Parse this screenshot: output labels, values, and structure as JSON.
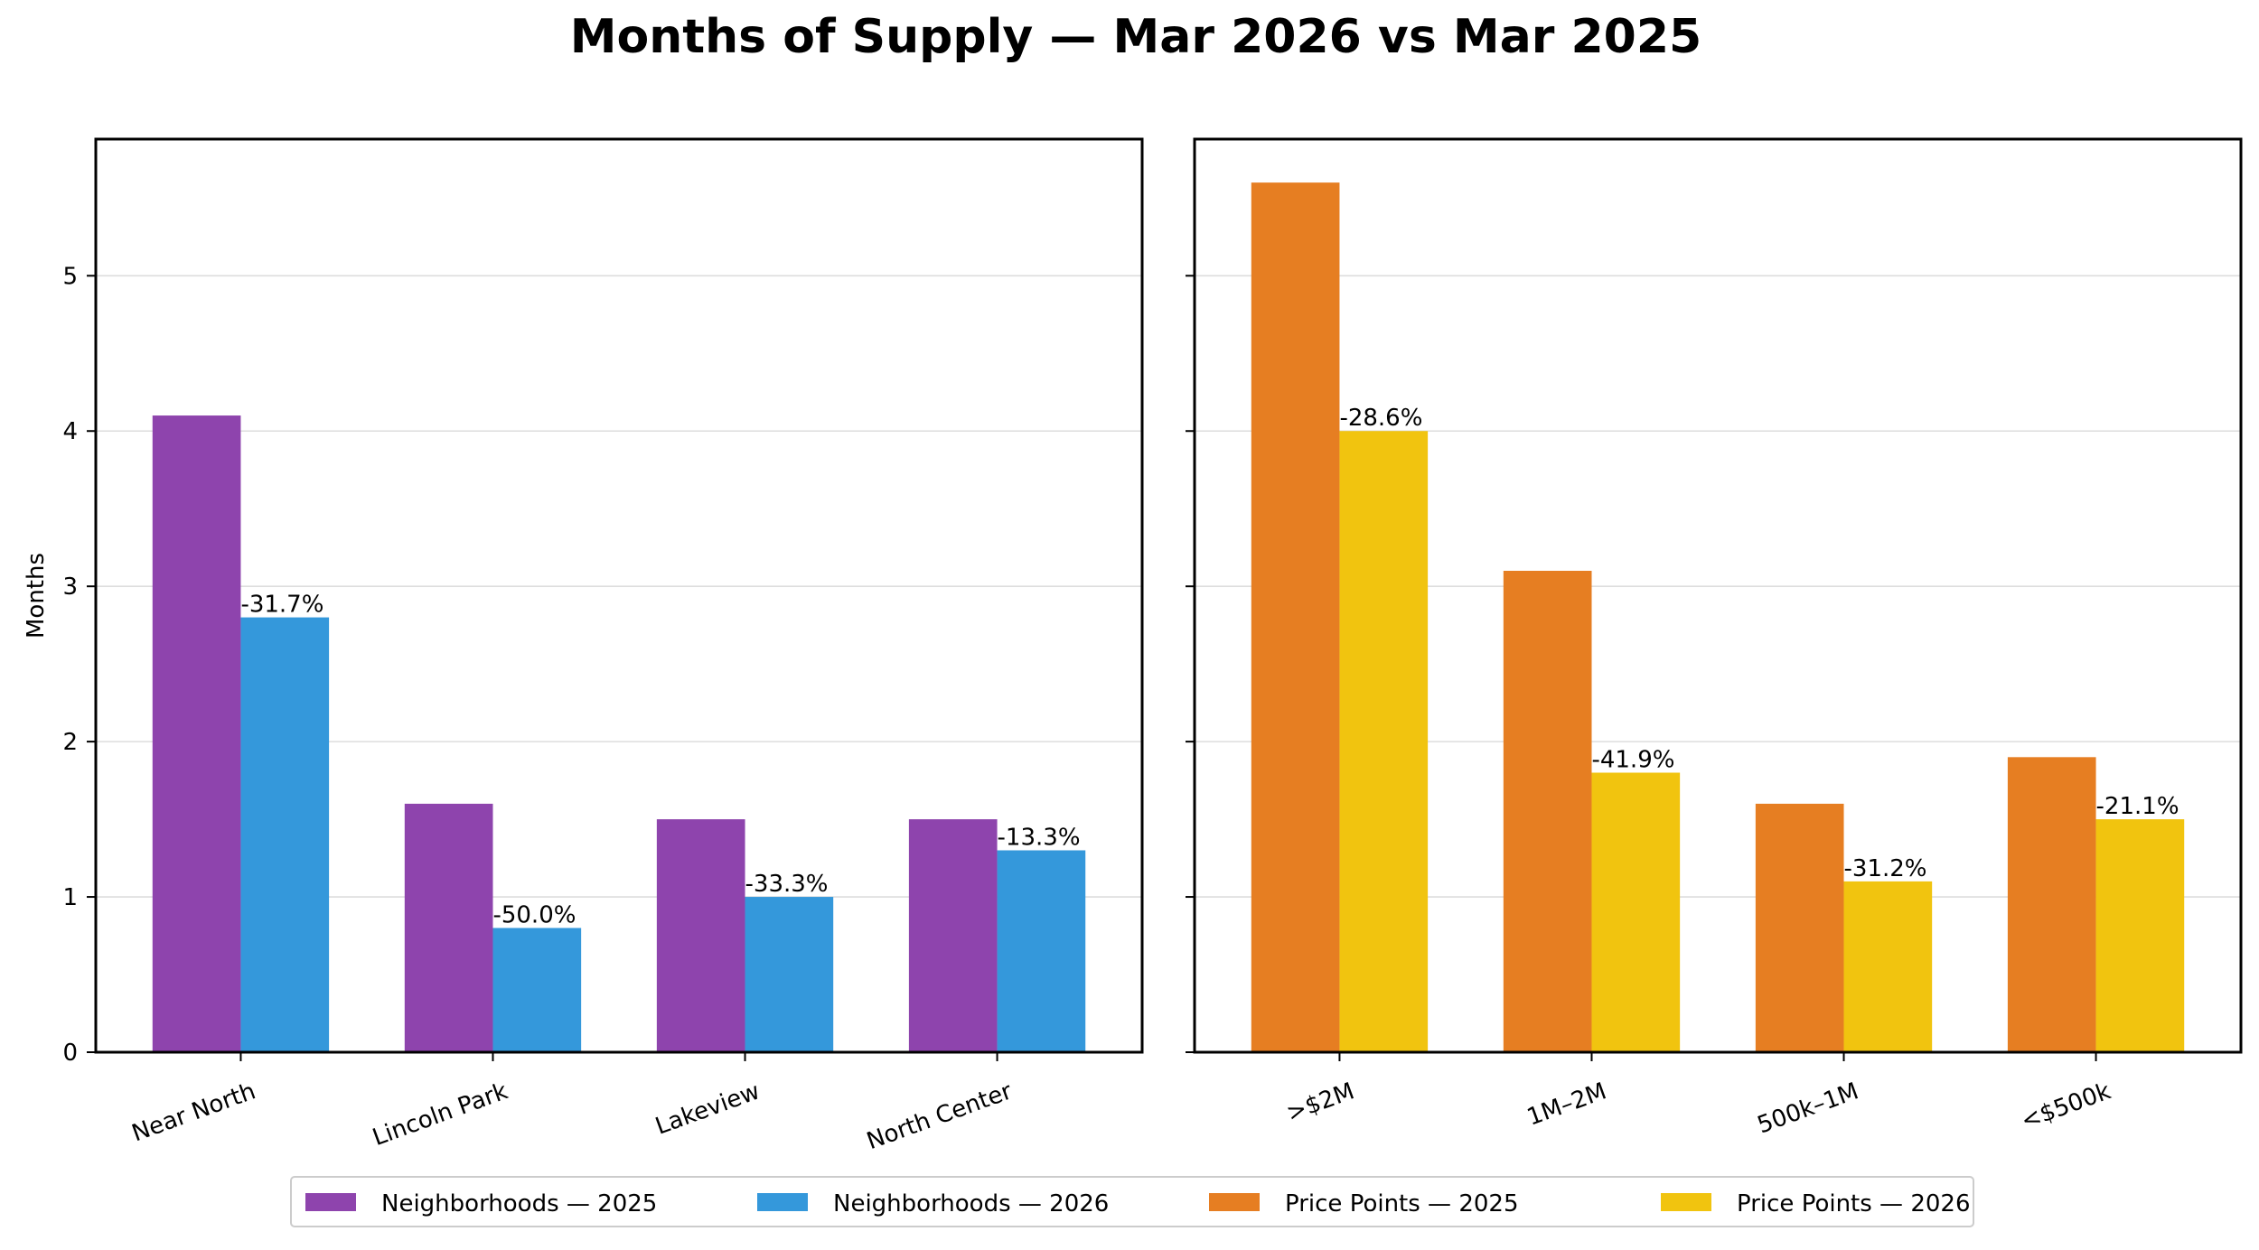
{
  "title": "Months of Supply — Mar 2026 vs Mar 2025",
  "colors": {
    "neighborhoods_2025": "#8e44ad",
    "neighborhoods_2026": "#3498db",
    "price_2025": "#e67e22",
    "price_2026": "#f1c40f",
    "grid": "#dddddd",
    "axis": "#000000"
  },
  "legend": [
    {
      "label": "Neighborhoods — 2025",
      "color": "#8e44ad"
    },
    {
      "label": "Neighborhoods — 2026",
      "color": "#3498db"
    },
    {
      "label": "Price Points — 2025",
      "color": "#e67e22"
    },
    {
      "label": "Price Points — 2026",
      "color": "#f1c40f"
    }
  ],
  "chart_data": [
    {
      "type": "bar",
      "name": "Neighborhoods",
      "title": "",
      "xlabel": "",
      "ylabel": "Months",
      "ylim": [
        0,
        5.88
      ],
      "yticks": [
        0,
        1,
        2,
        3,
        4,
        5
      ],
      "grid": true,
      "categories": [
        "Near North",
        "Lincoln Park",
        "Lakeview",
        "North Center"
      ],
      "series": [
        {
          "name": "Neighborhoods — 2025",
          "values": [
            4.1,
            1.6,
            1.5,
            1.5
          ]
        },
        {
          "name": "Neighborhoods — 2026",
          "values": [
            2.8,
            0.8,
            1.0,
            1.3
          ]
        }
      ],
      "annotations": [
        "-31.7%",
        "-50.0%",
        "-33.3%",
        "-13.3%"
      ]
    },
    {
      "type": "bar",
      "name": "Price Points",
      "title": "",
      "xlabel": "",
      "ylabel": "",
      "ylim": [
        0,
        5.88
      ],
      "yticks": [
        0,
        1,
        2,
        3,
        4,
        5
      ],
      "grid": true,
      "categories": [
        ">$2M",
        "1M–2M",
        "500k–1M",
        "<$500k"
      ],
      "series": [
        {
          "name": "Price Points — 2025",
          "values": [
            5.6,
            3.1,
            1.6,
            1.9
          ]
        },
        {
          "name": "Price Points — 2026",
          "values": [
            4.0,
            1.8,
            1.1,
            1.5
          ]
        }
      ],
      "annotations": [
        "-28.6%",
        "-41.9%",
        "-31.2%",
        "-21.1%"
      ]
    }
  ]
}
